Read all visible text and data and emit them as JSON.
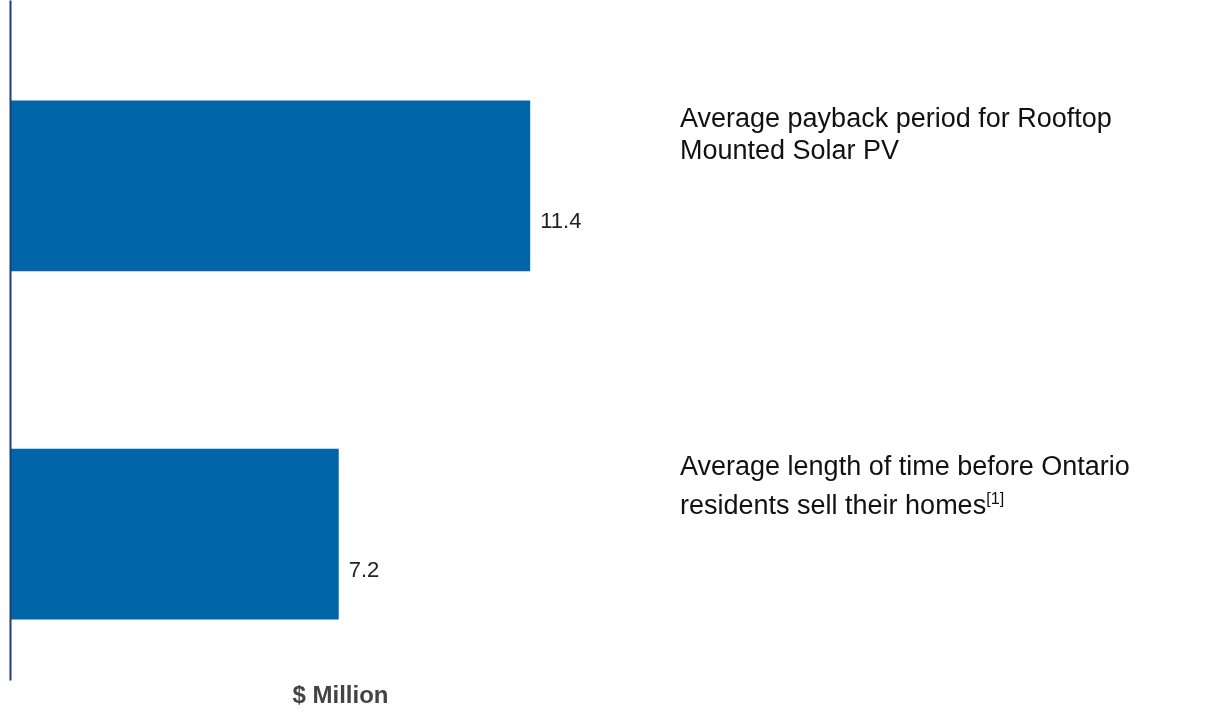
{
  "chart_data": {
    "type": "bar",
    "orientation": "horizontal",
    "xlabel": "$ Million",
    "categories": [
      "Average payback period for Rooftop Mounted Solar PV",
      "Average length of time before Ontario residents sell their homes$^{[1]}$"
    ],
    "values": [
      11.4,
      7.2
    ],
    "color": "#0066a8",
    "data_labels": true
  }
}
